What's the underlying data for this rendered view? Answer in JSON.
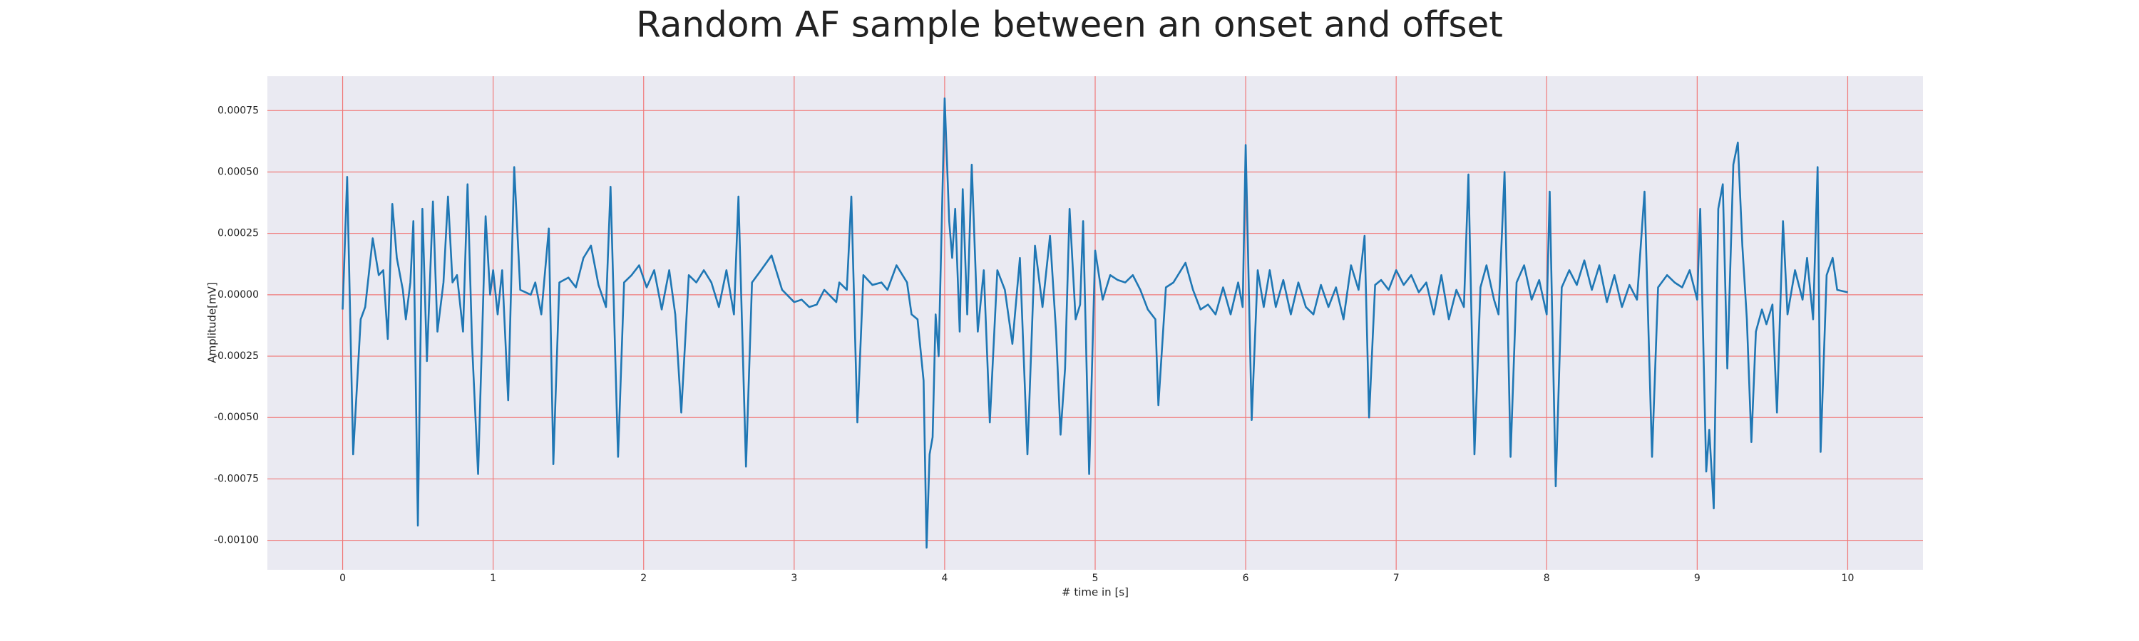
{
  "chart_data": {
    "type": "line",
    "title": "Random AF sample between an onset and offset",
    "xlabel": "# time in [s]",
    "ylabel": "Amplitude[mV]",
    "x": [
      0,
      0.03,
      0.07,
      0.12,
      0.15,
      0.2,
      0.24,
      0.27,
      0.3,
      0.33,
      0.36,
      0.4,
      0.42,
      0.45,
      0.47,
      0.5,
      0.53,
      0.56,
      0.6,
      0.63,
      0.67,
      0.7,
      0.73,
      0.76,
      0.8,
      0.83,
      0.86,
      0.9,
      0.95,
      0.98,
      1.0,
      1.03,
      1.06,
      1.1,
      1.14,
      1.18,
      1.25,
      1.28,
      1.32,
      1.37,
      1.4,
      1.44,
      1.5,
      1.55,
      1.6,
      1.65,
      1.7,
      1.75,
      1.78,
      1.83,
      1.87,
      1.92,
      1.97,
      2.02,
      2.07,
      2.12,
      2.17,
      2.21,
      2.25,
      2.3,
      2.35,
      2.4,
      2.45,
      2.5,
      2.55,
      2.6,
      2.63,
      2.68,
      2.72,
      2.78,
      2.85,
      2.92,
      3.0,
      3.05,
      3.1,
      3.15,
      3.2,
      3.28,
      3.3,
      3.35,
      3.38,
      3.42,
      3.46,
      3.52,
      3.58,
      3.62,
      3.68,
      3.75,
      3.78,
      3.82,
      3.86,
      3.88,
      3.9,
      3.92,
      3.94,
      3.96,
      4.0,
      4.03,
      4.05,
      4.07,
      4.1,
      4.12,
      4.15,
      4.18,
      4.22,
      4.26,
      4.3,
      4.35,
      4.4,
      4.45,
      4.5,
      4.55,
      4.6,
      4.65,
      4.7,
      4.74,
      4.77,
      4.8,
      4.83,
      4.87,
      4.9,
      4.92,
      4.96,
      5.0,
      5.05,
      5.1,
      5.15,
      5.2,
      5.25,
      5.3,
      5.35,
      5.4,
      5.42,
      5.47,
      5.52,
      5.6,
      5.65,
      5.7,
      5.75,
      5.8,
      5.85,
      5.9,
      5.95,
      5.98,
      6.0,
      6.04,
      6.08,
      6.12,
      6.16,
      6.2,
      6.25,
      6.3,
      6.35,
      6.4,
      6.45,
      6.5,
      6.55,
      6.6,
      6.65,
      6.7,
      6.75,
      6.79,
      6.82,
      6.86,
      6.9,
      6.95,
      7.0,
      7.05,
      7.1,
      7.15,
      7.2,
      7.25,
      7.3,
      7.35,
      7.4,
      7.45,
      7.48,
      7.52,
      7.56,
      7.6,
      7.65,
      7.68,
      7.72,
      7.76,
      7.8,
      7.85,
      7.9,
      7.95,
      8.0,
      8.02,
      8.06,
      8.1,
      8.15,
      8.2,
      8.25,
      8.3,
      8.35,
      8.4,
      8.45,
      8.5,
      8.55,
      8.6,
      8.65,
      8.7,
      8.74,
      8.8,
      8.85,
      8.9,
      8.95,
      9.0,
      9.02,
      9.06,
      9.08,
      9.11,
      9.14,
      9.17,
      9.2,
      9.24,
      9.27,
      9.3,
      9.33,
      9.36,
      9.39,
      9.43,
      9.46,
      9.5,
      9.53,
      9.57,
      9.6,
      9.65,
      9.7,
      9.73,
      9.77,
      9.8,
      9.82,
      9.86,
      9.9,
      9.93,
      10.0
    ],
    "values": [
      -6e-05,
      0.00048,
      -0.00065,
      -0.0001,
      -5e-05,
      0.00023,
      8e-05,
      0.0001,
      -0.00018,
      0.00037,
      0.00015,
      2e-05,
      -0.0001,
      5e-05,
      0.0003,
      -0.00094,
      0.00035,
      -0.00027,
      0.00038,
      -0.00015,
      5e-05,
      0.0004,
      5e-05,
      8e-05,
      -0.00015,
      0.00045,
      -0.0002,
      -0.00073,
      0.00032,
      0,
      0.0001,
      -8e-05,
      0.0001,
      -0.00043,
      0.00052,
      2e-05,
      0,
      5e-05,
      -8e-05,
      0.00027,
      -0.00069,
      5e-05,
      7e-05,
      3e-05,
      0.00015,
      0.0002,
      4e-05,
      -5e-05,
      0.00044,
      -0.00066,
      5e-05,
      8e-05,
      0.00012,
      3e-05,
      0.0001,
      -6e-05,
      0.0001,
      -8e-05,
      -0.00048,
      8e-05,
      5e-05,
      0.0001,
      5e-05,
      -5e-05,
      0.0001,
      -8e-05,
      0.0004,
      -0.0007,
      5e-05,
      0.0001,
      0.00016,
      2e-05,
      -3e-05,
      -2e-05,
      -5e-05,
      -4e-05,
      2e-05,
      -3e-05,
      5e-05,
      2e-05,
      0.0004,
      -0.00052,
      8e-05,
      4e-05,
      5e-05,
      2e-05,
      0.00012,
      5e-05,
      -8e-05,
      -0.0001,
      -0.00035,
      -0.00103,
      -0.00065,
      -0.00058,
      -8e-05,
      -0.00025,
      0.0008,
      0.0003,
      0.00015,
      0.00035,
      -0.00015,
      0.00043,
      -8e-05,
      0.00053,
      -0.00015,
      0.0001,
      -0.00052,
      0.0001,
      2e-05,
      -0.0002,
      0.00015,
      -0.00065,
      0.0002,
      -5e-05,
      0.00024,
      -0.00015,
      -0.00057,
      -0.0003,
      0.00035,
      -0.0001,
      -4e-05,
      0.0003,
      -0.00073,
      0.00018,
      -2e-05,
      8e-05,
      6e-05,
      5e-05,
      8e-05,
      2e-05,
      -6e-05,
      -0.0001,
      -0.00045,
      3e-05,
      5e-05,
      0.00013,
      2e-05,
      -6e-05,
      -4e-05,
      -8e-05,
      3e-05,
      -8e-05,
      5e-05,
      -5e-05,
      0.00061,
      -0.00051,
      0.0001,
      -5e-05,
      0.0001,
      -5e-05,
      6e-05,
      -8e-05,
      5e-05,
      -5e-05,
      -8e-05,
      4e-05,
      -5e-05,
      3e-05,
      -0.0001,
      0.00012,
      2e-05,
      0.00024,
      -0.0005,
      4e-05,
      6e-05,
      2e-05,
      0.0001,
      4e-05,
      8e-05,
      1e-05,
      5e-05,
      -8e-05,
      8e-05,
      -0.0001,
      2e-05,
      -5e-05,
      0.00049,
      -0.00065,
      3e-05,
      0.00012,
      -2e-05,
      -8e-05,
      0.0005,
      -0.00066,
      5e-05,
      0.00012,
      -2e-05,
      6e-05,
      -8e-05,
      0.00042,
      -0.00078,
      3e-05,
      0.0001,
      4e-05,
      0.00014,
      2e-05,
      0.00012,
      -3e-05,
      8e-05,
      -5e-05,
      4e-05,
      -2e-05,
      0.00042,
      -0.00066,
      3e-05,
      8e-05,
      5e-05,
      3e-05,
      0.0001,
      -2e-05,
      0.00035,
      -0.00072,
      -0.00055,
      -0.00087,
      0.00035,
      0.00045,
      -0.0003,
      0.00053,
      0.00062,
      0.0002,
      -0.0001,
      -0.0006,
      -0.00015,
      -6e-05,
      -0.00012,
      -4e-05,
      -0.00048,
      0.0003,
      -8e-05,
      0.0001,
      -2e-05,
      0.00015,
      -0.0001,
      0.00052,
      -0.00064,
      8e-05,
      0.00015,
      2e-05,
      1e-05
    ],
    "color": "#1f77b4",
    "xlim": [
      -0.5,
      10.5
    ],
    "xticks": [
      0,
      1,
      2,
      3,
      4,
      5,
      6,
      7,
      8,
      9,
      10
    ],
    "ylim": [
      -0.00112,
      0.00089
    ],
    "yticks": [
      {
        "value": -0.001,
        "label": "-0.00100"
      },
      {
        "value": -0.00075,
        "label": "-0.00075"
      },
      {
        "value": -0.0005,
        "label": "-0.00050"
      },
      {
        "value": -0.00025,
        "label": "-0.00025"
      },
      {
        "value": 0,
        "label": "0.00000"
      },
      {
        "value": 0.00025,
        "label": "0.00025"
      },
      {
        "value": 0.0005,
        "label": "0.00050"
      },
      {
        "value": 0.00075,
        "label": "0.00075"
      }
    ],
    "grid": true,
    "grid_color": "#f07a7a"
  }
}
